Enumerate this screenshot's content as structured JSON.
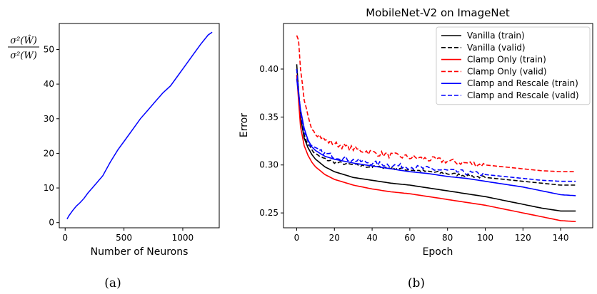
{
  "chart_data": [
    {
      "type": "line",
      "panel_caption": "(a)",
      "title": "",
      "xlabel": "Number of Neurons",
      "ylabel": "σ²(Ŵ) / σ²(W)",
      "ylabel_numerator": "σ²(Ŵ)",
      "ylabel_denominator": "σ²(W)",
      "xlim": [
        -50,
        1310
      ],
      "ylim": [
        -1.5,
        57.5
      ],
      "xticks": [
        0,
        500,
        1000
      ],
      "yticks": [
        0,
        10,
        20,
        30,
        40,
        50
      ],
      "grid": false,
      "series": [
        {
          "color": "#0000ff",
          "x": [
            16,
            32,
            64,
            96,
            128,
            160,
            192,
            256,
            320,
            384,
            448,
            512,
            576,
            640,
            704,
            768,
            832,
            896,
            960,
            1024,
            1088,
            1152,
            1216,
            1250
          ],
          "y": [
            1.0,
            2.0,
            3.5,
            4.8,
            5.8,
            7.0,
            8.5,
            11.0,
            13.5,
            17.5,
            21.0,
            24.0,
            27.0,
            30.0,
            32.5,
            35.0,
            37.5,
            39.5,
            42.5,
            45.5,
            48.5,
            51.5,
            54.2,
            55.0
          ]
        }
      ]
    },
    {
      "type": "line",
      "panel_caption": "(b)",
      "title": "MobileNet-V2 on ImageNet",
      "xlabel": "Epoch",
      "ylabel": "Error",
      "xlim": [
        -7,
        157
      ],
      "ylim": [
        0.2345,
        0.4475
      ],
      "xticks": [
        0,
        20,
        40,
        60,
        80,
        100,
        120,
        140
      ],
      "yticks": [
        0.25,
        0.3,
        0.35,
        0.4
      ],
      "grid": false,
      "legend_position": "top-right",
      "series": [
        {
          "name": "Vanilla (train)",
          "color": "#000000",
          "dash": "solid",
          "noise": 0,
          "x": [
            0,
            2,
            4,
            6,
            8,
            10,
            15,
            20,
            30,
            40,
            50,
            60,
            70,
            80,
            90,
            100,
            110,
            120,
            130,
            140,
            148
          ],
          "y": [
            0.405,
            0.35,
            0.328,
            0.318,
            0.311,
            0.306,
            0.298,
            0.293,
            0.287,
            0.284,
            0.281,
            0.279,
            0.276,
            0.273,
            0.27,
            0.267,
            0.263,
            0.259,
            0.255,
            0.252,
            0.252
          ]
        },
        {
          "name": "Vanilla (valid)",
          "color": "#000000",
          "dash": "dashed",
          "noise": 0.0015,
          "x": [
            0,
            2,
            4,
            6,
            8,
            10,
            15,
            20,
            30,
            40,
            50,
            60,
            70,
            80,
            90,
            100,
            110,
            120,
            130,
            140,
            148
          ],
          "y": [
            0.4,
            0.35,
            0.33,
            0.322,
            0.316,
            0.311,
            0.306,
            0.303,
            0.3,
            0.298,
            0.297,
            0.295,
            0.293,
            0.291,
            0.289,
            0.287,
            0.285,
            0.283,
            0.281,
            0.279,
            0.279
          ]
        },
        {
          "name": "Clamp Only (train)",
          "color": "#ff0000",
          "dash": "solid",
          "noise": 0,
          "x": [
            0,
            2,
            4,
            6,
            8,
            10,
            15,
            20,
            30,
            40,
            50,
            60,
            70,
            80,
            90,
            100,
            110,
            120,
            130,
            140,
            148
          ],
          "y": [
            0.394,
            0.34,
            0.32,
            0.31,
            0.303,
            0.298,
            0.29,
            0.285,
            0.279,
            0.275,
            0.272,
            0.27,
            0.267,
            0.264,
            0.261,
            0.258,
            0.254,
            0.25,
            0.246,
            0.242,
            0.241
          ]
        },
        {
          "name": "Clamp Only (valid)",
          "color": "#ff0000",
          "dash": "dashed",
          "noise": 0.003,
          "x": [
            0,
            1,
            2,
            4,
            6,
            8,
            10,
            15,
            20,
            30,
            40,
            50,
            60,
            70,
            80,
            90,
            100,
            110,
            120,
            130,
            140,
            148
          ],
          "y": [
            0.435,
            0.43,
            0.4,
            0.365,
            0.35,
            0.34,
            0.334,
            0.326,
            0.322,
            0.317,
            0.313,
            0.31,
            0.308,
            0.306,
            0.304,
            0.302,
            0.3,
            0.298,
            0.296,
            0.294,
            0.293,
            0.293
          ]
        },
        {
          "name": "Clamp and Rescale (train)",
          "color": "#0000ff",
          "dash": "solid",
          "noise": 0,
          "x": [
            0,
            2,
            4,
            6,
            8,
            10,
            15,
            20,
            30,
            40,
            50,
            60,
            70,
            80,
            90,
            100,
            110,
            120,
            130,
            140,
            148
          ],
          "y": [
            0.39,
            0.358,
            0.338,
            0.326,
            0.319,
            0.315,
            0.309,
            0.306,
            0.302,
            0.299,
            0.296,
            0.293,
            0.291,
            0.288,
            0.286,
            0.283,
            0.28,
            0.277,
            0.273,
            0.269,
            0.268
          ]
        },
        {
          "name": "Clamp and Rescale (valid)",
          "color": "#0000ff",
          "dash": "dashed",
          "noise": 0.0025,
          "x": [
            0,
            2,
            4,
            6,
            8,
            10,
            15,
            20,
            30,
            40,
            50,
            60,
            70,
            80,
            90,
            100,
            110,
            120,
            130,
            140,
            148
          ],
          "y": [
            0.4,
            0.355,
            0.335,
            0.325,
            0.319,
            0.316,
            0.312,
            0.309,
            0.305,
            0.302,
            0.3,
            0.298,
            0.296,
            0.294,
            0.292,
            0.29,
            0.288,
            0.286,
            0.284,
            0.283,
            0.283
          ]
        }
      ]
    }
  ]
}
